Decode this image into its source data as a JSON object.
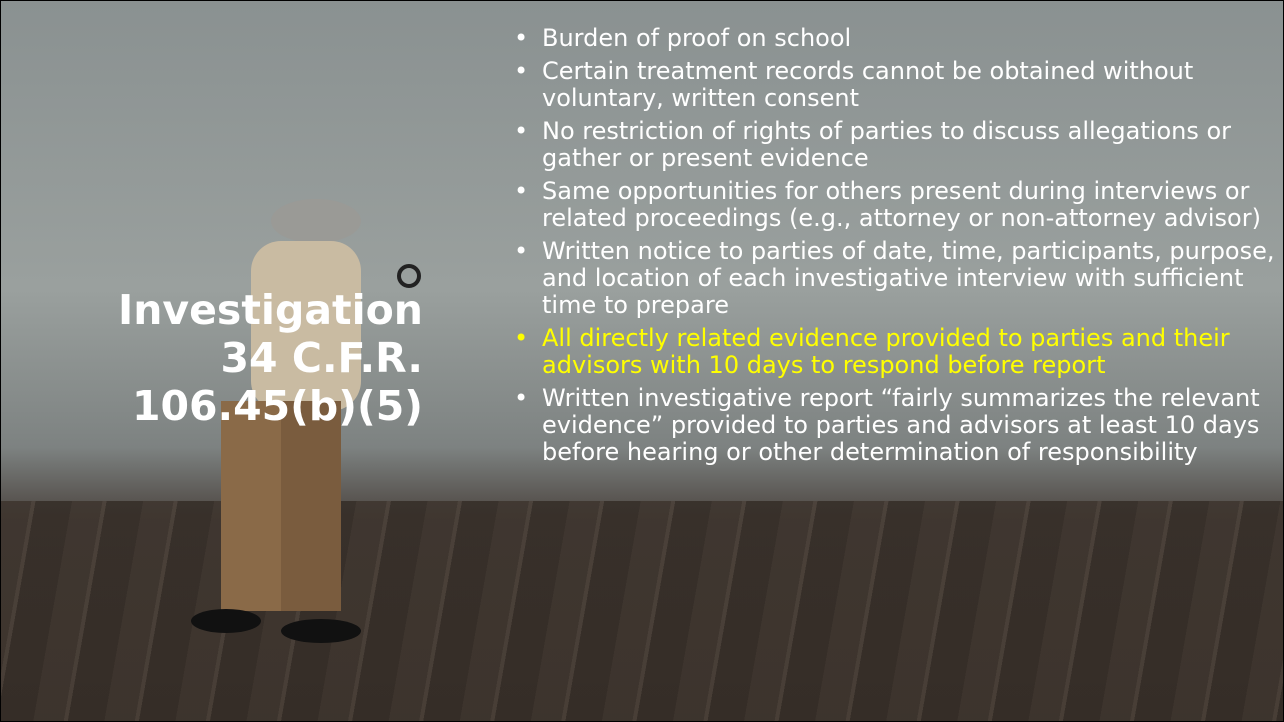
{
  "title": {
    "lines": [
      "Investigation",
      "34 C.F.R.",
      "106.45(b)(5)"
    ]
  },
  "bullets": [
    {
      "text": "Burden of proof on school"
    },
    {
      "text": "Certain treatment records cannot be obtained without voluntary, written consent"
    },
    {
      "text": "No restriction of rights of parties to discuss allegations or gather or present evidence"
    },
    {
      "text": "Same opportunities for others present during interviews or related proceedings (e.g., attorney or non-attorney advisor)"
    },
    {
      "text": "Written notice to parties of date, time, participants, purpose, and location of each investigative interview with sufficient time to prepare"
    },
    {
      "text": "All directly related evidence provided to parties and their advisors with 10 days to respond before report",
      "highlight": true
    },
    {
      "text": "Written investigative report “fairly summarizes the relevant evidence” provided to parties and advisors at least 10 days before hearing or other determination of responsibility"
    }
  ]
}
